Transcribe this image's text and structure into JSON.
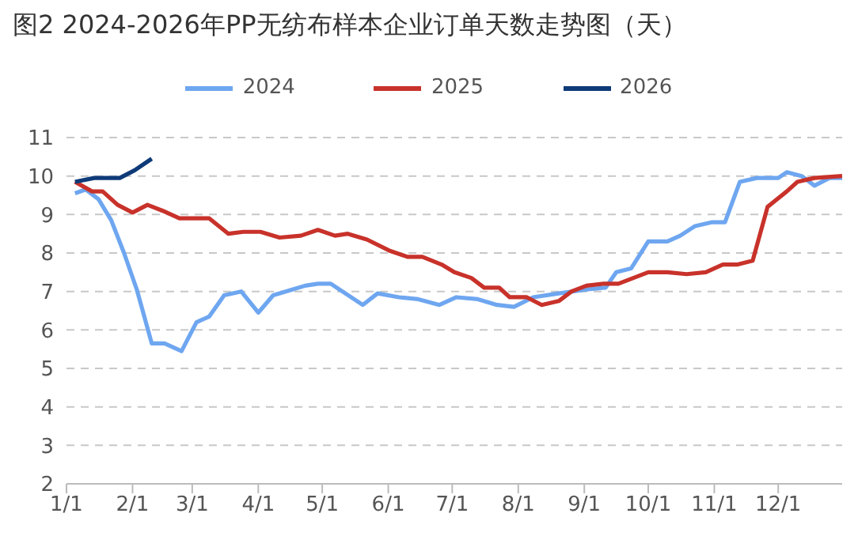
{
  "chart_data": {
    "type": "line",
    "title": "图2  2024-2026年PP无纺布样本企业订单天数走势图（天）",
    "xlim": [
      "--01-01",
      "--12-31"
    ],
    "xticks": [
      {
        "value": "--01-01",
        "label": "1/1"
      },
      {
        "value": "--02-01",
        "label": "2/1"
      },
      {
        "value": "--03-01",
        "label": "3/1"
      },
      {
        "value": "--04-01",
        "label": "4/1"
      },
      {
        "value": "--05-01",
        "label": "5/1"
      },
      {
        "value": "--06-01",
        "label": "6/1"
      },
      {
        "value": "--07-01",
        "label": "7/1"
      },
      {
        "value": "--08-01",
        "label": "8/1"
      },
      {
        "value": "--09-01",
        "label": "9/1"
      },
      {
        "value": "--10-01",
        "label": "10/1"
      },
      {
        "value": "--11-01",
        "label": "11/1"
      },
      {
        "value": "--12-01",
        "label": "12/1"
      }
    ],
    "ylim": [
      2,
      11
    ],
    "yticks": [
      2,
      3,
      4,
      5,
      6,
      7,
      8,
      9,
      10,
      11
    ],
    "grid": "y",
    "legend": "top",
    "marker": "none",
    "line_style": "solid",
    "series": [
      {
        "name": "2024",
        "color": "#6ea6f0",
        "x": [
          "--01-05",
          "--01-10",
          "--01-16",
          "--01-22",
          "--01-28",
          "--02-03",
          "--02-10",
          "--02-16",
          "--02-24",
          "--03-03",
          "--03-09",
          "--03-16",
          "--03-24",
          "--04-01",
          "--04-08",
          "--04-17",
          "--04-23",
          "--04-29",
          "--05-05",
          "--05-20",
          "--05-27",
          "--06-06",
          "--06-15",
          "--06-25",
          "--07-03",
          "--07-13",
          "--07-22",
          "--07-30",
          "--08-08",
          "--08-20",
          "--09-02",
          "--09-11",
          "--09-16",
          "--09-23",
          "--10-01",
          "--10-10",
          "--10-16",
          "--10-23",
          "--10-31",
          "--11-06",
          "--11-13",
          "--11-21",
          "--12-01",
          "--12-05",
          "--12-12",
          "--12-18",
          "--12-25",
          "--12-31"
        ],
        "values": [
          9.55,
          9.65,
          9.4,
          8.85,
          8.0,
          7.05,
          5.65,
          5.65,
          5.45,
          6.2,
          6.35,
          6.9,
          7.0,
          6.45,
          6.9,
          7.05,
          7.15,
          7.2,
          7.2,
          6.65,
          6.95,
          6.85,
          6.8,
          6.65,
          6.85,
          6.8,
          6.65,
          6.6,
          6.85,
          6.95,
          7.05,
          7.1,
          7.5,
          7.6,
          8.3,
          8.3,
          8.45,
          8.7,
          8.8,
          8.8,
          9.85,
          9.95,
          9.95,
          10.1,
          10.0,
          9.75,
          9.95,
          9.95
        ]
      },
      {
        "name": "2025",
        "color": "#c8322a",
        "x": [
          "--01-05",
          "--01-13",
          "--01-18",
          "--01-25",
          "--02-01",
          "--02-08",
          "--02-15",
          "--02-23",
          "--03-03",
          "--03-09",
          "--03-18",
          "--03-25",
          "--04-02",
          "--04-11",
          "--04-21",
          "--04-29",
          "--05-07",
          "--05-13",
          "--05-22",
          "--06-02",
          "--06-10",
          "--06-17",
          "--06-26",
          "--07-02",
          "--07-10",
          "--07-16",
          "--07-23",
          "--07-28",
          "--08-05",
          "--08-12",
          "--08-20",
          "--08-26",
          "--09-02",
          "--09-10",
          "--09-17",
          "--09-24",
          "--10-01",
          "--10-10",
          "--10-19",
          "--10-28",
          "--11-05",
          "--11-12",
          "--11-19",
          "--11-26",
          "--12-05",
          "--12-10",
          "--12-18",
          "--12-31"
        ],
        "values": [
          9.85,
          9.6,
          9.6,
          9.25,
          9.05,
          9.25,
          9.1,
          8.9,
          8.9,
          8.9,
          8.5,
          8.55,
          8.55,
          8.4,
          8.45,
          8.6,
          8.45,
          8.5,
          8.35,
          8.05,
          7.9,
          7.9,
          7.7,
          7.5,
          7.35,
          7.1,
          7.1,
          6.85,
          6.85,
          6.65,
          6.75,
          7.0,
          7.15,
          7.2,
          7.2,
          7.35,
          7.5,
          7.5,
          7.45,
          7.5,
          7.7,
          7.7,
          7.8,
          9.2,
          9.6,
          9.85,
          9.95,
          10.0
        ]
      },
      {
        "name": "2026",
        "color": "#0e3a78",
        "x": [
          "--01-05",
          "--01-14",
          "--01-26",
          "--02-02",
          "--02-10"
        ],
        "values": [
          9.85,
          9.95,
          9.95,
          10.15,
          10.45
        ]
      }
    ]
  }
}
